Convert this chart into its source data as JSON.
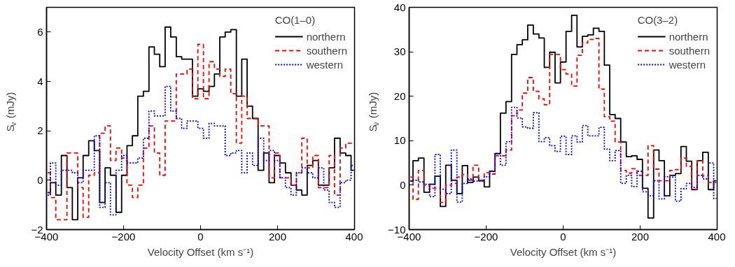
{
  "chart_data": [
    {
      "type": "step",
      "legend_title": "CO(1–0)",
      "xlabel": "Velocity Offset (km s⁻¹)",
      "ylabel": "S$_{ν}$ (mJy)",
      "xlim": [
        -400,
        400
      ],
      "xticks": [
        -400,
        -200,
        0,
        200,
        400
      ],
      "ylim": [
        -2,
        7
      ],
      "yticks": [
        -2,
        0,
        2,
        4,
        6
      ],
      "grid": false,
      "legend": "top right",
      "x": [
        -397,
        -383,
        -369,
        -354,
        -340,
        -326,
        -312,
        -298,
        -283,
        -269,
        -255,
        -241,
        -227,
        -212,
        -198,
        -184,
        -170,
        -156,
        -141,
        -127,
        -113,
        -99,
        -85,
        -70,
        -56,
        -42,
        -28,
        -14,
        0,
        15,
        29,
        43,
        57,
        71,
        86,
        100,
        114,
        128,
        142,
        157,
        171,
        185,
        199,
        213,
        228,
        242,
        256,
        270,
        284,
        299,
        313,
        327,
        341,
        355,
        370,
        384,
        398
      ],
      "series": [
        {
          "name": "northern",
          "color": "#000000",
          "line_style": "solid",
          "values": [
            -0.5,
            -0.1,
            -0.6,
            1.0,
            -0.3,
            -1.6,
            0.1,
            1.0,
            1.6,
            1.2,
            -0.9,
            0.5,
            0.2,
            -1.3,
            0.2,
            1.4,
            1.8,
            3.4,
            3.6,
            5.4,
            5.1,
            4.6,
            6.2,
            5.8,
            5.0,
            4.9,
            4.9,
            3.4,
            3.7,
            3.6,
            3.8,
            4.3,
            5.8,
            6.0,
            6.1,
            3.4,
            4.9,
            3.0,
            2.5,
            0.4,
            1.1,
            -0.1,
            1.0,
            0.7,
            0.3,
            -0.2,
            -0.4,
            -0.6,
            0.6,
            0.8,
            -0.2,
            -0.2,
            0.5,
            1.7,
            1.1,
            1.0,
            0.4
          ]
        },
        {
          "name": "southern",
          "color": "#ff0000",
          "line_style": "dashed",
          "values": [
            0.3,
            -0.7,
            -1.6,
            -1.6,
            1.1,
            1.1,
            -0.3,
            -1.5,
            0.2,
            0.3,
            1.9,
            2.2,
            0.8,
            1.3,
            0.9,
            -0.2,
            -0.7,
            -0.2,
            1.3,
            2.2,
            1.1,
            0.2,
            2.4,
            2.4,
            4.3,
            4.3,
            4.5,
            3.3,
            5.5,
            3.3,
            4.8,
            4.5,
            4.2,
            4.5,
            3.5,
            1.5,
            3.4,
            2.5,
            2.5,
            2.2,
            2.2,
            0.1,
            1.1,
            0.1,
            0.1,
            -0.2,
            0.3,
            1.7,
            0.5,
            1.0,
            -0.3,
            -0.3,
            1.0,
            -0.6,
            1.3,
            1.5,
            1.5
          ]
        },
        {
          "name": "western",
          "color": "#0000ff",
          "line_style": "dotted",
          "values": [
            -0.6,
            0.7,
            -0.2,
            0.4,
            0.4,
            0.3,
            -0.1,
            0.4,
            0.4,
            1.8,
            -1.1,
            -0.1,
            -1.4,
            0.4,
            1.0,
            0.7,
            0.7,
            0.9,
            1.7,
            2.8,
            2.6,
            2.6,
            3.8,
            2.8,
            2.5,
            2.1,
            2.4,
            2.4,
            2.1,
            1.7,
            2.3,
            2.2,
            2.2,
            1.0,
            1.1,
            1.2,
            0.3,
            1.1,
            0.6,
            1.7,
            0.8,
            1.2,
            0.8,
            0.1,
            -0.3,
            -0.6,
            0.3,
            0.5,
            0.3,
            0.1,
            0.5,
            -0.4,
            -0.9,
            -1.1,
            -0.1,
            0.0,
            0.6
          ]
        }
      ]
    },
    {
      "type": "step",
      "legend_title": "CO(3–2)",
      "xlabel": "Velocity Offset (km s⁻¹)",
      "ylabel": "S$_{ν}$ (mJy)",
      "xlim": [
        -400,
        400
      ],
      "xticks": [
        -400,
        -200,
        0,
        200,
        400
      ],
      "ylim": [
        -10,
        40
      ],
      "yticks": [
        -10,
        0,
        10,
        20,
        30,
        40
      ],
      "grid": false,
      "legend": "top right",
      "x": [
        -397,
        -383,
        -369,
        -354,
        -340,
        -326,
        -312,
        -298,
        -283,
        -269,
        -255,
        -241,
        -227,
        -212,
        -198,
        -184,
        -170,
        -156,
        -141,
        -127,
        -113,
        -99,
        -85,
        -70,
        -56,
        -42,
        -28,
        -14,
        0,
        15,
        29,
        43,
        57,
        71,
        86,
        100,
        114,
        128,
        142,
        157,
        171,
        185,
        199,
        213,
        228,
        242,
        256,
        270,
        284,
        299,
        313,
        327,
        341,
        355,
        370,
        384,
        398
      ],
      "series": [
        {
          "name": "northern",
          "color": "#000000",
          "line_style": "solid",
          "values": [
            0.9,
            5.5,
            6.1,
            -1.6,
            0.2,
            2.0,
            -4.8,
            4.5,
            1.1,
            -1.9,
            4.4,
            0.6,
            1.8,
            1.0,
            -0.4,
            3.1,
            7.1,
            16.2,
            18.8,
            29.4,
            31.6,
            32.7,
            36.0,
            34.0,
            33.1,
            26.5,
            29.9,
            23.0,
            27.7,
            34.6,
            38.2,
            31.1,
            33.5,
            33.8,
            35.3,
            34.6,
            27.0,
            15.9,
            15.0,
            9.7,
            6.4,
            6.6,
            5.8,
            -0.7,
            -7.4,
            7.9,
            5.5,
            -2.4,
            2.2,
            2.6,
            8.7,
            5.4,
            -1.0,
            5.5,
            7.4,
            -1.0,
            1.0
          ]
        },
        {
          "name": "southern",
          "color": "#ff0000",
          "line_style": "dashed",
          "values": [
            1.8,
            -3.2,
            3.3,
            0.0,
            -0.7,
            -0.7,
            -3.9,
            0.0,
            0.4,
            1.8,
            2.4,
            1.1,
            4.5,
            1.1,
            2.8,
            2.5,
            6.6,
            6.6,
            7.9,
            15.6,
            16.9,
            20.7,
            24.2,
            21.1,
            19.4,
            18.1,
            29.4,
            29.4,
            26.0,
            25.0,
            22.3,
            29.2,
            32.0,
            32.8,
            33.0,
            21.6,
            15.4,
            14.4,
            9.7,
            3.3,
            2.7,
            3.7,
            2.2,
            2.2,
            8.9,
            3.6,
            1.0,
            1.0,
            3.3,
            3.5,
            6.1,
            4.2,
            -0.9,
            5.5,
            2.1,
            0.6,
            0.6
          ]
        },
        {
          "name": "western",
          "color": "#0000ff",
          "line_style": "dotted",
          "values": [
            1.0,
            1.1,
            0.7,
            0.2,
            -2.6,
            6.9,
            -0.9,
            -1.9,
            7.9,
            -3.8,
            0.4,
            1.4,
            0.9,
            0.9,
            1.9,
            3.2,
            7.1,
            4.5,
            9.8,
            17.5,
            15.1,
            13.1,
            12.8,
            16.3,
            9.8,
            10.7,
            8.9,
            7.6,
            11.0,
            6.9,
            11.1,
            9.7,
            13.4,
            11.1,
            11.1,
            13.0,
            8.1,
            5.5,
            7.8,
            0.4,
            2.2,
            -0.3,
            3.1,
            -1.5,
            -2.4,
            1.0,
            -3.1,
            1.9,
            1.8,
            -3.6,
            -0.8,
            0.4,
            -0.5,
            2.2,
            1.4,
            5.0,
            -3.0
          ]
        }
      ]
    }
  ]
}
